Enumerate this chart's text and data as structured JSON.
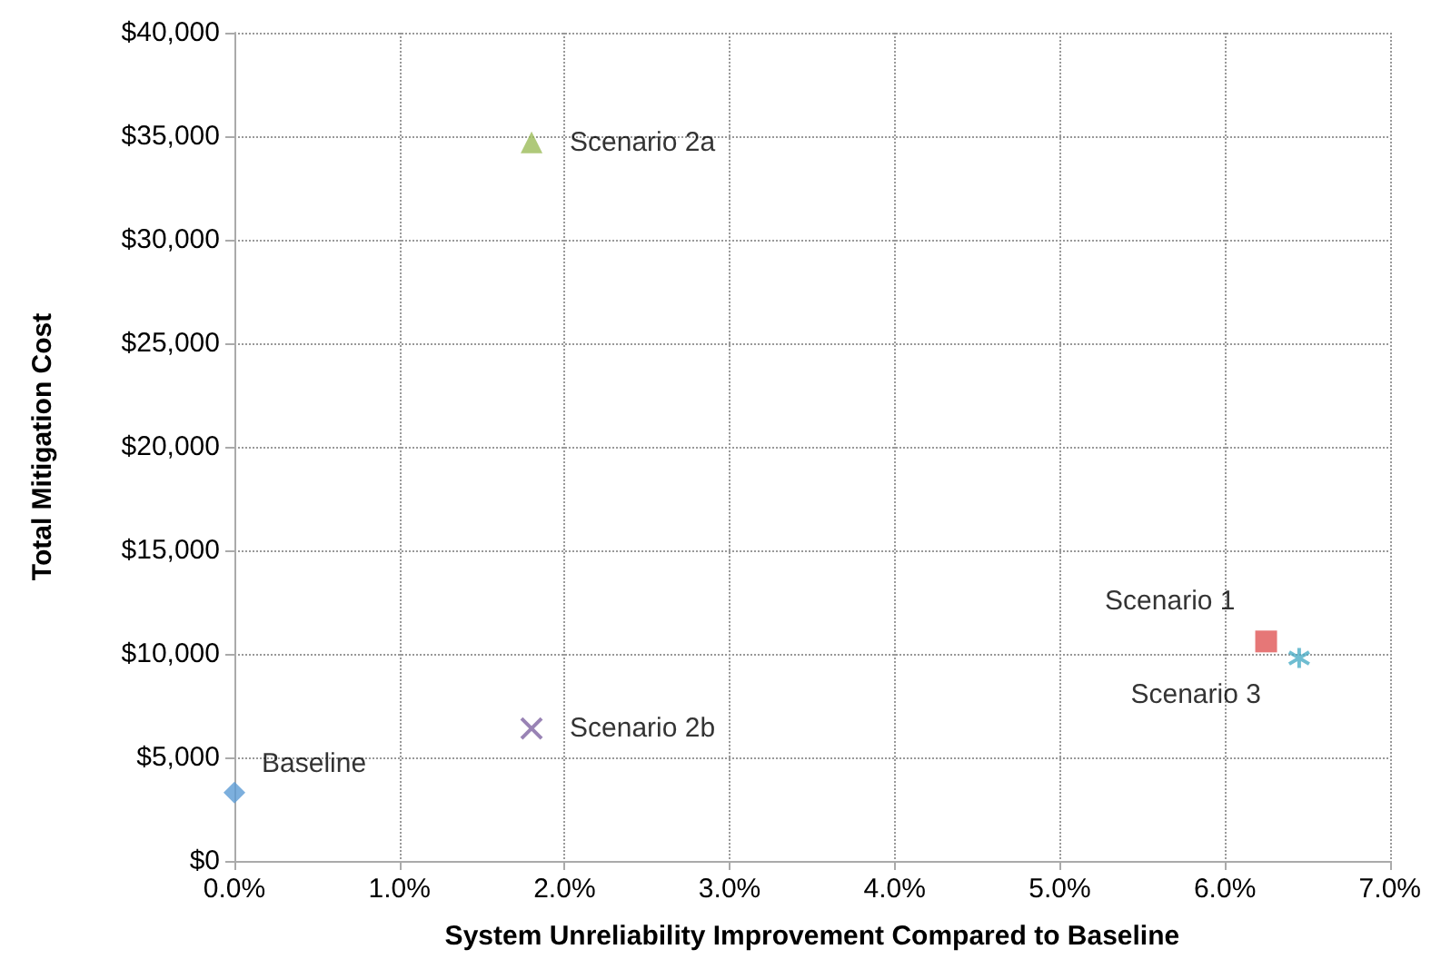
{
  "chart_data": {
    "type": "scatter",
    "xlabel": "System Unreliability Improvement Compared to Baseline",
    "ylabel": "Total Mitigation Cost",
    "xlim": [
      0,
      7
    ],
    "xticks": [
      {
        "value": 0,
        "label": "0.0%"
      },
      {
        "value": 1,
        "label": "1.0%"
      },
      {
        "value": 2,
        "label": "2.0%"
      },
      {
        "value": 3,
        "label": "3.0%"
      },
      {
        "value": 4,
        "label": "4.0%"
      },
      {
        "value": 5,
        "label": "5.0%"
      },
      {
        "value": 6,
        "label": "6.0%"
      },
      {
        "value": 7,
        "label": "7.0%"
      }
    ],
    "ylim": [
      0,
      40000
    ],
    "yticks": [
      {
        "value": 0,
        "label": "$0"
      },
      {
        "value": 5000,
        "label": "$5,000"
      },
      {
        "value": 10000,
        "label": "$10,000"
      },
      {
        "value": 15000,
        "label": "$15,000"
      },
      {
        "value": 20000,
        "label": "$20,000"
      },
      {
        "value": 25000,
        "label": "$25,000"
      },
      {
        "value": 30000,
        "label": "$30,000"
      },
      {
        "value": 35000,
        "label": "$35,000"
      },
      {
        "value": 40000,
        "label": "$40,000"
      }
    ],
    "grid": true,
    "legend": false,
    "series": [
      {
        "name": "Baseline",
        "color": "#5b9bd5",
        "marker": "diamond",
        "x": [
          0.0
        ],
        "values": [
          3300
        ]
      },
      {
        "name": "Scenario 2a",
        "color": "#9bbb59",
        "marker": "triangle",
        "x": [
          1.8
        ],
        "values": [
          34700
        ]
      },
      {
        "name": "Scenario 2b",
        "color": "#8064a2",
        "marker": "cross",
        "x": [
          1.8
        ],
        "values": [
          6400
        ]
      },
      {
        "name": "Scenario 1",
        "color": "#e05555",
        "marker": "square",
        "x": [
          6.25
        ],
        "values": [
          10600
        ]
      },
      {
        "name": "Scenario 3",
        "color": "#4bacc6",
        "marker": "star",
        "x": [
          6.45
        ],
        "values": [
          9800
        ]
      }
    ]
  }
}
